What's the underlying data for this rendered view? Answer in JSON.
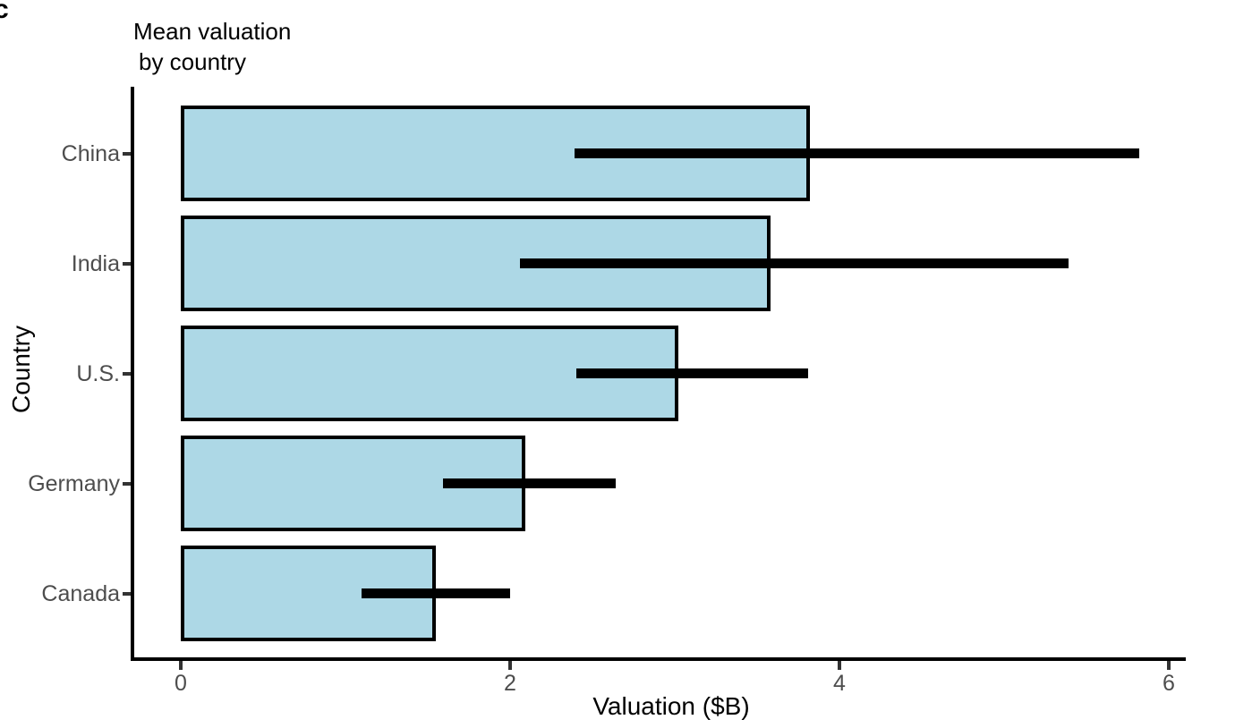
{
  "panel_label": "c",
  "title": {
    "line1": "Mean valuation",
    "line2": "by country"
  },
  "chart_data": {
    "type": "bar",
    "orientation": "horizontal",
    "title": "Mean valuation by country",
    "categories": [
      "China",
      "India",
      "U.S.",
      "Germany",
      "Canada"
    ],
    "values": [
      3.82,
      3.58,
      3.02,
      2.09,
      1.55
    ],
    "error_low": [
      2.39,
      2.06,
      2.4,
      1.59,
      1.1
    ],
    "error_high": [
      5.82,
      5.39,
      3.81,
      2.64,
      2.0
    ],
    "xlabel": "Valuation ($B)",
    "ylabel": "Country",
    "x_ticks": [
      "0",
      "2",
      "4",
      "6"
    ],
    "x_tick_values": [
      0,
      2,
      4,
      6
    ],
    "xlim": [
      0,
      6.1
    ],
    "grid": false,
    "legend": "none",
    "colors": {
      "bar_fill": "#ADD8E6",
      "bar_border": "#000000",
      "error_bar": "#000000",
      "axis_line": "#000000",
      "tick_label_text": "#4D4D4D",
      "title_text": "#000000"
    }
  }
}
